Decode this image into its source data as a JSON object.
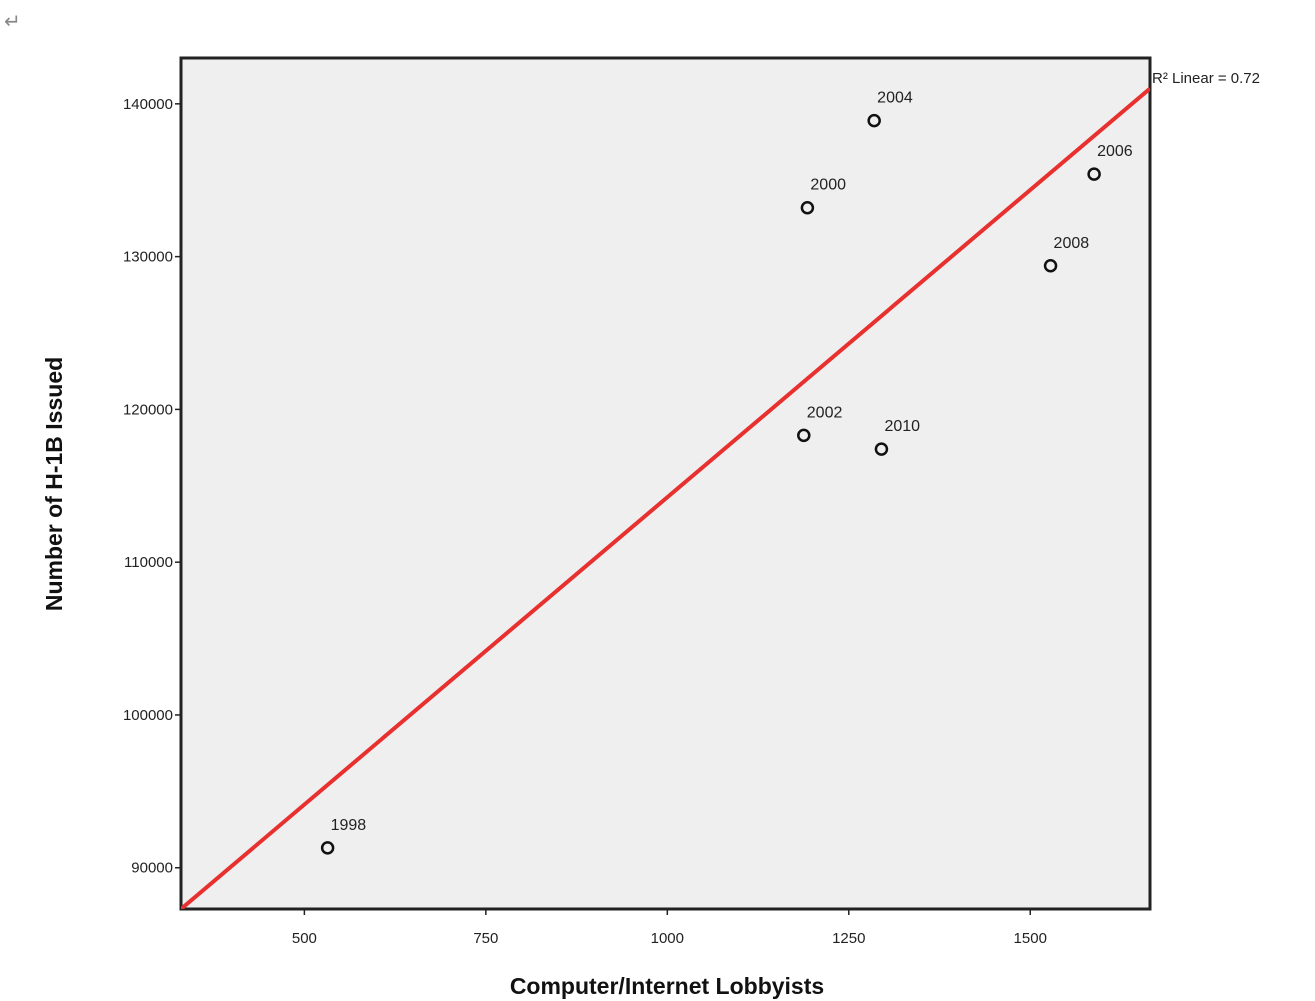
{
  "page": {
    "return_mark": "↵"
  },
  "colors": {
    "plot_background": "#efefef",
    "frame": "#222222",
    "fit_line": "#e8302f",
    "marker": "#111111"
  },
  "chart_data": {
    "type": "scatter",
    "title": "",
    "xlabel": "Computer/Internet Lobbyists",
    "ylabel": "Number of H-1B Issued",
    "xlim": [
      330,
      1665
    ],
    "ylim": [
      87300,
      143000
    ],
    "xticks": [
      500,
      750,
      1000,
      1250,
      1500
    ],
    "yticks": [
      90000,
      100000,
      110000,
      120000,
      130000,
      140000
    ],
    "grid": false,
    "marker": "open-circle",
    "points": [
      {
        "label": "1998",
        "x": 532,
        "y": 91300
      },
      {
        "label": "2000",
        "x": 1193,
        "y": 133200
      },
      {
        "label": "2002",
        "x": 1188,
        "y": 118300
      },
      {
        "label": "2004",
        "x": 1285,
        "y": 138900
      },
      {
        "label": "2006",
        "x": 1588,
        "y": 135400
      },
      {
        "label": "2008",
        "x": 1528,
        "y": 129400
      },
      {
        "label": "2010",
        "x": 1295,
        "y": 117400
      }
    ],
    "fit_line": {
      "type": "linear",
      "label": "R² Linear = 0.72",
      "x": [
        330,
        1665
      ],
      "y": [
        87300,
        141000
      ]
    }
  }
}
